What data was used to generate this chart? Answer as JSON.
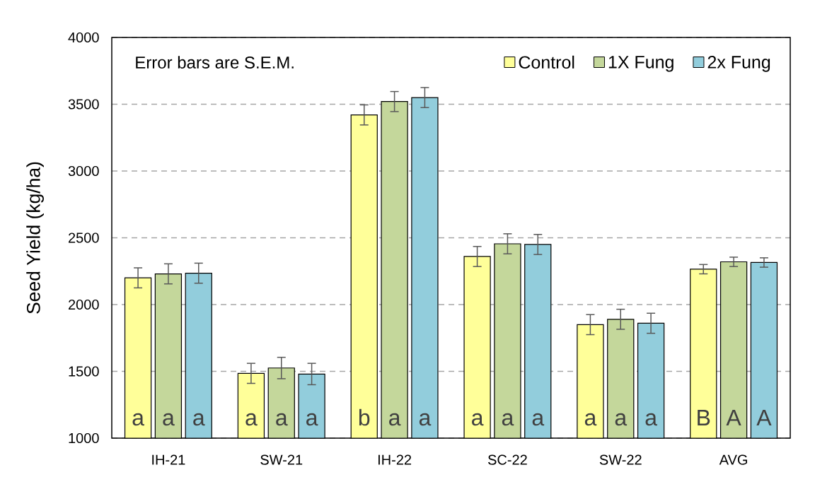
{
  "chart_data": {
    "type": "bar",
    "ylabel": "Seed Yield (kg/ha)",
    "categories": [
      "IH-21",
      "SW-21",
      "IH-22",
      "SC-22",
      "SW-22",
      "AVG"
    ],
    "series": [
      {
        "name": "Control",
        "color": "#ffff99",
        "values": [
          2200,
          1485,
          3420,
          2360,
          1850,
          2265
        ],
        "errors": [
          75,
          75,
          75,
          75,
          75,
          35
        ],
        "value_labels": [
          "a",
          "a",
          "b",
          "a",
          "a",
          "B"
        ]
      },
      {
        "name": "1X Fung",
        "color": "#c4d79b",
        "values": [
          2230,
          1525,
          3520,
          2455,
          1890,
          2320
        ],
        "errors": [
          75,
          80,
          75,
          75,
          75,
          35
        ],
        "value_labels": [
          "a",
          "a",
          "a",
          "a",
          "a",
          "A"
        ]
      },
      {
        "name": "2x Fung",
        "color": "#92cddc",
        "values": [
          2235,
          1480,
          3550,
          2450,
          1860,
          2315
        ],
        "errors": [
          75,
          80,
          75,
          75,
          75,
          35
        ],
        "value_labels": [
          "a",
          "a",
          "a",
          "a",
          "a",
          "A"
        ]
      }
    ],
    "ylim": [
      1000,
      4000
    ],
    "yticks": [
      1000,
      1500,
      2000,
      2500,
      3000,
      3500,
      4000
    ],
    "grid": "y",
    "legend": "top right",
    "annotations": [
      "Error bars are S.E.M."
    ]
  }
}
